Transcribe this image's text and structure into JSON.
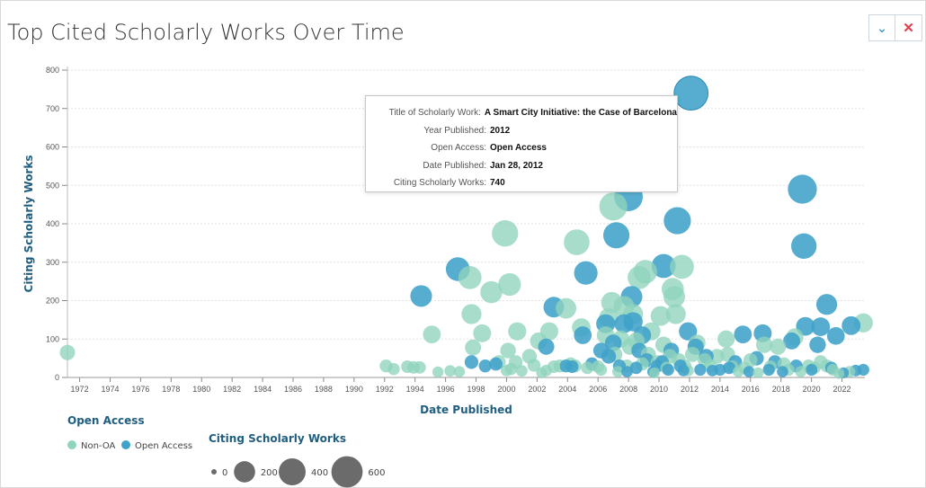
{
  "header": {
    "title": "Top Cited Scholarly Works Over Time"
  },
  "controls": {
    "collapse_icon": "chevron-down-icon",
    "close_icon": "close-icon",
    "collapse_glyph": "⌄",
    "close_glyph": "✕"
  },
  "colors": {
    "non_oa": "#8fd4bd",
    "open_access": "#3fa2c8",
    "axis_title": "#1f5e80",
    "grid": "#e3e3e3"
  },
  "tooltip": {
    "rows": [
      {
        "key": "Title of Scholarly Work:",
        "value": "A Smart City Initiative: the Case of Barcelona"
      },
      {
        "key": "Year Published:",
        "value": "2012"
      },
      {
        "key": "Open Access:",
        "value": "Open Access"
      },
      {
        "key": "Date Published:",
        "value": "Jan 28, 2012"
      },
      {
        "key": "Citing Scholarly Works:",
        "value": "740"
      }
    ]
  },
  "legend": {
    "color_title": "Open Access",
    "color_items": [
      {
        "label": "Non-OA",
        "category": "Non-OA"
      },
      {
        "label": "Open Access",
        "category": "Open Access"
      }
    ],
    "size_title": "Citing Scholarly Works",
    "size_items": [
      {
        "label": "0",
        "value": 0
      },
      {
        "label": "200",
        "value": 200
      },
      {
        "label": "400",
        "value": 400
      },
      {
        "label": "600",
        "value": 600
      }
    ]
  },
  "chart_data": {
    "type": "scatter",
    "xlabel": "Date Published",
    "ylabel": "Citing Scholarly Works",
    "xlim": [
      1971.2,
      2023.5
    ],
    "ylim": [
      0,
      800
    ],
    "grid": true,
    "size_encoding": "Citing Scholarly Works",
    "xticks": [
      "1972",
      "1974",
      "1976",
      "1978",
      "1980",
      "1982",
      "1984",
      "1986",
      "1988",
      "1990",
      "1992",
      "1994",
      "1996",
      "1998",
      "2000",
      "2002",
      "2004",
      "2006",
      "2008",
      "2010",
      "2012",
      "2014",
      "2016",
      "2018",
      "2020",
      "2022"
    ],
    "yticks": [
      "0",
      "100",
      "200",
      "300",
      "400",
      "500",
      "600",
      "700",
      "800"
    ],
    "series": [
      {
        "name": "Non-OA",
        "points": [
          {
            "x": 1971.2,
            "y": 65
          },
          {
            "x": 1992.1,
            "y": 30
          },
          {
            "x": 1992.6,
            "y": 22
          },
          {
            "x": 1993.5,
            "y": 28
          },
          {
            "x": 1993.9,
            "y": 26
          },
          {
            "x": 1994.3,
            "y": 26
          },
          {
            "x": 1995.1,
            "y": 112
          },
          {
            "x": 1995.5,
            "y": 14
          },
          {
            "x": 1996.3,
            "y": 17
          },
          {
            "x": 1996.9,
            "y": 15
          },
          {
            "x": 1997.6,
            "y": 260
          },
          {
            "x": 1997.7,
            "y": 165
          },
          {
            "x": 1997.8,
            "y": 78
          },
          {
            "x": 1998.4,
            "y": 115
          },
          {
            "x": 1999.0,
            "y": 222
          },
          {
            "x": 1999.5,
            "y": 40
          },
          {
            "x": 1999.9,
            "y": 375
          },
          {
            "x": 2000.0,
            "y": 18
          },
          {
            "x": 2000.3,
            "y": 22
          },
          {
            "x": 2000.1,
            "y": 70
          },
          {
            "x": 2000.2,
            "y": 242
          },
          {
            "x": 2000.7,
            "y": 120
          },
          {
            "x": 2000.6,
            "y": 40
          },
          {
            "x": 2001.0,
            "y": 17
          },
          {
            "x": 2001.5,
            "y": 55
          },
          {
            "x": 2001.8,
            "y": 32
          },
          {
            "x": 2002.1,
            "y": 95
          },
          {
            "x": 2002.3,
            "y": 12
          },
          {
            "x": 2002.6,
            "y": 18
          },
          {
            "x": 2002.8,
            "y": 120
          },
          {
            "x": 2003.1,
            "y": 28
          },
          {
            "x": 2003.5,
            "y": 30
          },
          {
            "x": 2003.9,
            "y": 180
          },
          {
            "x": 2004.2,
            "y": 35
          },
          {
            "x": 2004.5,
            "y": 30
          },
          {
            "x": 2004.6,
            "y": 352
          },
          {
            "x": 2004.9,
            "y": 130
          },
          {
            "x": 2005.3,
            "y": 25
          },
          {
            "x": 2006.0,
            "y": 28
          },
          {
            "x": 2006.2,
            "y": 20
          },
          {
            "x": 2006.5,
            "y": 110
          },
          {
            "x": 2006.7,
            "y": 155
          },
          {
            "x": 2006.9,
            "y": 195
          },
          {
            "x": 2007.0,
            "y": 445
          },
          {
            "x": 2007.1,
            "y": 60
          },
          {
            "x": 2007.3,
            "y": 15
          },
          {
            "x": 2007.5,
            "y": 100
          },
          {
            "x": 2007.7,
            "y": 185
          },
          {
            "x": 2007.9,
            "y": 30
          },
          {
            "x": 2008.1,
            "y": 80
          },
          {
            "x": 2008.3,
            "y": 165
          },
          {
            "x": 2008.5,
            "y": 95
          },
          {
            "x": 2008.7,
            "y": 260
          },
          {
            "x": 2008.9,
            "y": 35
          },
          {
            "x": 2009.1,
            "y": 275
          },
          {
            "x": 2009.3,
            "y": 60
          },
          {
            "x": 2009.5,
            "y": 120
          },
          {
            "x": 2009.7,
            "y": 12
          },
          {
            "x": 2009.9,
            "y": 40
          },
          {
            "x": 2010.1,
            "y": 160
          },
          {
            "x": 2010.3,
            "y": 85
          },
          {
            "x": 2010.5,
            "y": 25
          },
          {
            "x": 2010.7,
            "y": 55
          },
          {
            "x": 2010.9,
            "y": 230
          },
          {
            "x": 2011.0,
            "y": 210
          },
          {
            "x": 2011.1,
            "y": 165
          },
          {
            "x": 2011.3,
            "y": 45
          },
          {
            "x": 2011.5,
            "y": 288
          },
          {
            "x": 2011.7,
            "y": 30
          },
          {
            "x": 2011.9,
            "y": 18
          },
          {
            "x": 2012.2,
            "y": 60
          },
          {
            "x": 2012.5,
            "y": 90
          },
          {
            "x": 2013.0,
            "y": 45
          },
          {
            "x": 2013.4,
            "y": 30
          },
          {
            "x": 2013.8,
            "y": 55
          },
          {
            "x": 2014.4,
            "y": 100
          },
          {
            "x": 2014.5,
            "y": 60
          },
          {
            "x": 2014.8,
            "y": 28
          },
          {
            "x": 2015.2,
            "y": 15
          },
          {
            "x": 2015.6,
            "y": 25
          },
          {
            "x": 2016.0,
            "y": 45
          },
          {
            "x": 2016.5,
            "y": 12
          },
          {
            "x": 2016.9,
            "y": 85
          },
          {
            "x": 2017.3,
            "y": 28
          },
          {
            "x": 2017.8,
            "y": 80
          },
          {
            "x": 2018.2,
            "y": 35
          },
          {
            "x": 2018.5,
            "y": 20
          },
          {
            "x": 2018.9,
            "y": 105
          },
          {
            "x": 2019.3,
            "y": 15
          },
          {
            "x": 2019.8,
            "y": 30
          },
          {
            "x": 2020.2,
            "y": 25
          },
          {
            "x": 2020.6,
            "y": 40
          },
          {
            "x": 2021.0,
            "y": 30
          },
          {
            "x": 2021.4,
            "y": 20
          },
          {
            "x": 2021.8,
            "y": 10
          },
          {
            "x": 2022.5,
            "y": 15
          },
          {
            "x": 2023.4,
            "y": 142
          }
        ]
      },
      {
        "name": "Open Access",
        "points": [
          {
            "x": 1994.4,
            "y": 212
          },
          {
            "x": 1996.8,
            "y": 282
          },
          {
            "x": 1997.7,
            "y": 40
          },
          {
            "x": 1998.6,
            "y": 30
          },
          {
            "x": 1999.3,
            "y": 35
          },
          {
            "x": 2002.6,
            "y": 80
          },
          {
            "x": 2003.1,
            "y": 183
          },
          {
            "x": 2003.9,
            "y": 30
          },
          {
            "x": 2004.3,
            "y": 28
          },
          {
            "x": 2005.0,
            "y": 110
          },
          {
            "x": 2005.2,
            "y": 272
          },
          {
            "x": 2005.6,
            "y": 35
          },
          {
            "x": 2006.2,
            "y": 70
          },
          {
            "x": 2006.5,
            "y": 140
          },
          {
            "x": 2006.7,
            "y": 55
          },
          {
            "x": 2007.0,
            "y": 90
          },
          {
            "x": 2007.2,
            "y": 370
          },
          {
            "x": 2007.4,
            "y": 30
          },
          {
            "x": 2007.7,
            "y": 140
          },
          {
            "x": 2007.9,
            "y": 15
          },
          {
            "x": 2008.0,
            "y": 470
          },
          {
            "x": 2008.2,
            "y": 210
          },
          {
            "x": 2008.3,
            "y": 145
          },
          {
            "x": 2008.5,
            "y": 25
          },
          {
            "x": 2008.7,
            "y": 70
          },
          {
            "x": 2008.9,
            "y": 110
          },
          {
            "x": 2009.2,
            "y": 45
          },
          {
            "x": 2009.6,
            "y": 15
          },
          {
            "x": 2009.9,
            "y": 30
          },
          {
            "x": 2010.2,
            "y": 40
          },
          {
            "x": 2010.3,
            "y": 290
          },
          {
            "x": 2010.6,
            "y": 20
          },
          {
            "x": 2010.8,
            "y": 70
          },
          {
            "x": 2011.2,
            "y": 408
          },
          {
            "x": 2011.4,
            "y": 30
          },
          {
            "x": 2011.6,
            "y": 18
          },
          {
            "x": 2011.9,
            "y": 120
          },
          {
            "x": 2012.1,
            "y": 740
          },
          {
            "x": 2012.4,
            "y": 80
          },
          {
            "x": 2012.7,
            "y": 20
          },
          {
            "x": 2013.1,
            "y": 55
          },
          {
            "x": 2013.5,
            "y": 18
          },
          {
            "x": 2014.0,
            "y": 20
          },
          {
            "x": 2014.6,
            "y": 25
          },
          {
            "x": 2015.0,
            "y": 40
          },
          {
            "x": 2015.5,
            "y": 112
          },
          {
            "x": 2015.9,
            "y": 15
          },
          {
            "x": 2016.4,
            "y": 50
          },
          {
            "x": 2016.8,
            "y": 115
          },
          {
            "x": 2017.2,
            "y": 20
          },
          {
            "x": 2017.6,
            "y": 40
          },
          {
            "x": 2018.1,
            "y": 15
          },
          {
            "x": 2018.7,
            "y": 95
          },
          {
            "x": 2019.0,
            "y": 30
          },
          {
            "x": 2019.4,
            "y": 490
          },
          {
            "x": 2019.5,
            "y": 342
          },
          {
            "x": 2019.6,
            "y": 133
          },
          {
            "x": 2020.0,
            "y": 20
          },
          {
            "x": 2020.4,
            "y": 85
          },
          {
            "x": 2020.6,
            "y": 132
          },
          {
            "x": 2021.0,
            "y": 190
          },
          {
            "x": 2021.3,
            "y": 25
          },
          {
            "x": 2021.6,
            "y": 108
          },
          {
            "x": 2022.1,
            "y": 12
          },
          {
            "x": 2022.6,
            "y": 135
          },
          {
            "x": 2022.9,
            "y": 18
          },
          {
            "x": 2023.4,
            "y": 20
          }
        ]
      }
    ]
  }
}
